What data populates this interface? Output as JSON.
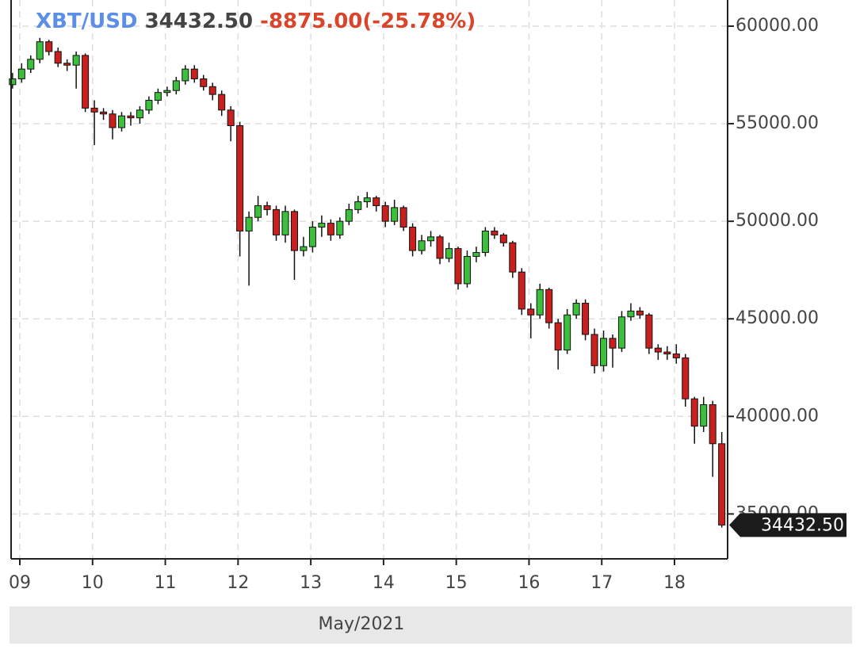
{
  "chart_data": {
    "type": "candlestick",
    "title": "XBT/USD",
    "last_price": {
      "value": 34432.5,
      "label": "34432.50"
    },
    "change_label": "-8875.00(-25.78%)",
    "x_label": "May/2021",
    "up_color": "#3cbf3c",
    "down_color": "#c8201e",
    "grid": true,
    "xlim": [
      8.88,
      18.73
    ],
    "xticks": [
      {
        "value": 9,
        "label": "09"
      },
      10,
      11,
      12,
      13,
      14,
      15,
      16,
      17,
      18
    ],
    "ylim": [
      32700,
      61340
    ],
    "yticks": [
      {
        "value": 35000,
        "label": "35000.00"
      },
      {
        "value": 40000,
        "label": "40000.00"
      },
      {
        "value": 45000,
        "label": "45000.00"
      },
      {
        "value": 50000,
        "label": "50000.00"
      },
      {
        "value": 55000,
        "label": "55000.00"
      },
      {
        "value": 60000,
        "label": "60000.00"
      }
    ],
    "x": [
      8.9,
      9.025,
      9.15,
      9.275,
      9.4,
      9.525,
      9.65,
      9.775,
      9.9,
      10.025,
      10.15,
      10.275,
      10.4,
      10.525,
      10.65,
      10.775,
      10.9,
      11.025,
      11.15,
      11.275,
      11.4,
      11.525,
      11.65,
      11.775,
      11.9,
      12.025,
      12.15,
      12.275,
      12.4,
      12.525,
      12.65,
      12.775,
      12.9,
      13.025,
      13.15,
      13.275,
      13.4,
      13.525,
      13.65,
      13.775,
      13.9,
      14.025,
      14.15,
      14.275,
      14.4,
      14.525,
      14.65,
      14.775,
      14.9,
      15.025,
      15.15,
      15.275,
      15.4,
      15.525,
      15.65,
      15.775,
      15.9,
      16.025,
      16.15,
      16.275,
      16.4,
      16.525,
      16.65,
      16.775,
      16.9,
      17.025,
      17.15,
      17.275,
      17.4,
      17.525,
      17.65,
      17.775,
      17.9,
      18.025,
      18.15,
      18.275,
      18.4,
      18.525,
      18.65
    ],
    "open": [
      57000,
      57300,
      57800,
      58300,
      59200,
      58700,
      58100,
      58000,
      58500,
      55800,
      55600,
      55500,
      54800,
      55400,
      55300,
      55700,
      56200,
      56600,
      56700,
      57200,
      57800,
      57300,
      56900,
      56500,
      55700,
      54900,
      49500,
      50200,
      50800,
      50600,
      49300,
      50500,
      48500,
      48700,
      49700,
      49900,
      49300,
      50000,
      50600,
      51000,
      51200,
      50800,
      50000,
      50700,
      49700,
      48500,
      49000,
      49200,
      48100,
      48600,
      46800,
      48200,
      48400,
      49500,
      49300,
      48900,
      47400,
      45500,
      45200,
      46500,
      44800,
      43400,
      45200,
      45800,
      44200,
      42600,
      44000,
      43500,
      45100,
      45400,
      45200,
      43500,
      43300,
      43200,
      43000,
      40900,
      39500,
      40600,
      38600
    ],
    "high": [
      57600,
      58100,
      58500,
      59400,
      59300,
      58900,
      58300,
      58700,
      58600,
      56200,
      55800,
      55700,
      55600,
      55600,
      55900,
      56400,
      56800,
      56900,
      57400,
      58000,
      58000,
      57500,
      57100,
      56700,
      55900,
      55100,
      50500,
      51300,
      51000,
      50800,
      50800,
      50600,
      49200,
      50000,
      50300,
      50100,
      50200,
      50900,
      51300,
      51500,
      51300,
      51000,
      51100,
      50800,
      49900,
      49300,
      49500,
      49300,
      48900,
      48700,
      48500,
      48700,
      49700,
      49700,
      49400,
      49000,
      47600,
      45800,
      46800,
      46600,
      45000,
      45500,
      46000,
      46000,
      44500,
      44400,
      44200,
      45400,
      45800,
      45600,
      45300,
      43700,
      43600,
      43700,
      43200,
      41000,
      41000,
      40800,
      39200
    ],
    "low": [
      56800,
      57100,
      57600,
      58100,
      58500,
      57900,
      57700,
      56800,
      55600,
      53900,
      55200,
      54200,
      54600,
      54900,
      55000,
      55500,
      56000,
      56400,
      56500,
      57000,
      57100,
      56700,
      56200,
      55400,
      54100,
      48200,
      46700,
      50000,
      50300,
      49000,
      48900,
      47000,
      48200,
      48400,
      49200,
      49000,
      49100,
      49800,
      50400,
      50700,
      50500,
      49700,
      49800,
      49500,
      48200,
      48300,
      48700,
      47800,
      47900,
      46500,
      46600,
      47900,
      48200,
      49100,
      48700,
      47100,
      45200,
      44000,
      45000,
      44500,
      42400,
      43200,
      45000,
      43900,
      42200,
      42300,
      42500,
      43300,
      44900,
      45000,
      43200,
      42900,
      42900,
      42700,
      40500,
      38600,
      39200,
      36900,
      34300
    ],
    "close": [
      57300,
      57800,
      58300,
      59200,
      58700,
      58100,
      58000,
      58500,
      55800,
      55600,
      55500,
      54800,
      55400,
      55300,
      55700,
      56200,
      56600,
      56700,
      57200,
      57800,
      57300,
      56900,
      56500,
      55700,
      54900,
      49500,
      50200,
      50800,
      50600,
      49300,
      50500,
      48500,
      48700,
      49700,
      49900,
      49300,
      50000,
      50600,
      51000,
      51200,
      50800,
      50000,
      50700,
      49700,
      48500,
      49000,
      49200,
      48100,
      48600,
      46800,
      48200,
      48400,
      49500,
      49300,
      48900,
      47400,
      45500,
      45200,
      46500,
      44800,
      43400,
      45200,
      45800,
      44200,
      42600,
      44000,
      43500,
      45100,
      45400,
      45200,
      43500,
      43300,
      43200,
      43000,
      40900,
      39500,
      40600,
      38600,
      34432.5
    ]
  }
}
